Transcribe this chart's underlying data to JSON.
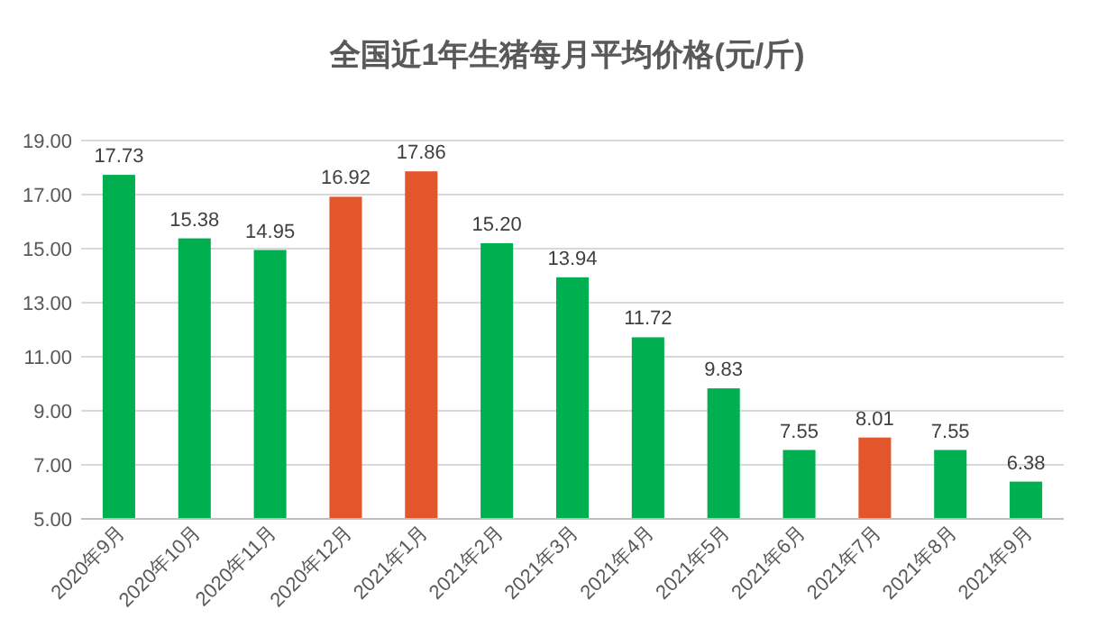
{
  "chart_data": {
    "type": "bar",
    "title": "全国近1年生猪每月平均价格(元/斤)",
    "categories": [
      "2020年9月",
      "2020年10月",
      "2020年11月",
      "2020年12月",
      "2021年1月",
      "2021年2月",
      "2021年3月",
      "2021年4月",
      "2021年5月",
      "2021年6月",
      "2021年7月",
      "2021年8月",
      "2021年9月"
    ],
    "values": [
      17.73,
      15.38,
      14.95,
      16.92,
      17.86,
      15.2,
      13.94,
      11.72,
      9.83,
      7.55,
      8.01,
      7.55,
      6.38
    ],
    "value_labels": [
      "17.73",
      "15.38",
      "14.95",
      "16.92",
      "17.86",
      "15.20",
      "13.94",
      "11.72",
      "9.83",
      "7.55",
      "8.01",
      "7.55",
      "6.38"
    ],
    "colors": [
      "#00b050",
      "#00b050",
      "#00b050",
      "#e3552b",
      "#e3552b",
      "#00b050",
      "#00b050",
      "#00b050",
      "#00b050",
      "#00b050",
      "#e3552b",
      "#00b050",
      "#00b050"
    ],
    "ylim": [
      5,
      19
    ],
    "yticks": [
      {
        "value": 5,
        "label": "5.00"
      },
      {
        "value": 7,
        "label": "7.00"
      },
      {
        "value": 9,
        "label": "9.00"
      },
      {
        "value": 11,
        "label": "11.00"
      },
      {
        "value": 13,
        "label": "13.00"
      },
      {
        "value": 15,
        "label": "15.00"
      },
      {
        "value": 17,
        "label": "17.00"
      },
      {
        "value": 19,
        "label": "19.00"
      }
    ],
    "grid": "y"
  }
}
